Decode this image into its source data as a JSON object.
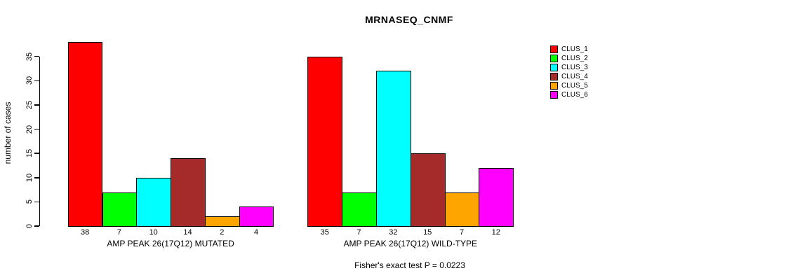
{
  "chart_data": {
    "type": "bar",
    "title": "MRNASEQ_CNMF",
    "ylabel": "number of cases",
    "ylim": [
      0,
      38
    ],
    "yticks": [
      0,
      5,
      10,
      15,
      20,
      25,
      30,
      35
    ],
    "grid": false,
    "legend_position": "right",
    "categories": [
      "AMP PEAK 26(17Q12) MUTATED",
      "AMP PEAK 26(17Q12) WILD-TYPE"
    ],
    "series": [
      {
        "name": "CLUS_1",
        "color": "#FF0000",
        "values": [
          38,
          35
        ]
      },
      {
        "name": "CLUS_2",
        "color": "#00FF00",
        "values": [
          7,
          7
        ]
      },
      {
        "name": "CLUS_3",
        "color": "#00FFFF",
        "values": [
          10,
          32
        ]
      },
      {
        "name": "CLUS_4",
        "color": "#A52A2A",
        "values": [
          14,
          15
        ]
      },
      {
        "name": "CLUS_5",
        "color": "#FFA500",
        "values": [
          2,
          7
        ]
      },
      {
        "name": "CLUS_6",
        "color": "#FF00FF",
        "values": [
          4,
          12
        ]
      }
    ],
    "bar_value_labels": {
      "AMP PEAK 26(17Q12) MUTATED": [
        38,
        7,
        10,
        14,
        2,
        4
      ],
      "AMP PEAK 26(17Q12) WILD-TYPE": [
        35,
        7,
        32,
        15,
        7,
        12
      ]
    },
    "annotation": "Fisher's exact test P = 0.0223",
    "colors": {
      "background": "#FFFFFF",
      "axis": "#000000",
      "bar_border": "#000000"
    }
  }
}
